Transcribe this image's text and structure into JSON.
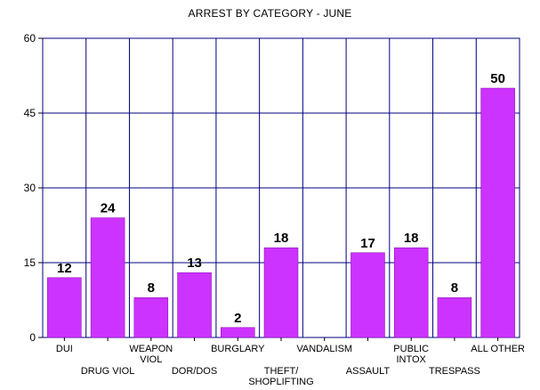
{
  "chart_data": {
    "type": "bar",
    "title": "ARREST BY CATEGORY - JUNE",
    "xlabel": "",
    "ylabel": "",
    "ylim": [
      0,
      60
    ],
    "yticks": [
      0,
      15,
      30,
      45,
      60
    ],
    "grid": true,
    "legend": "none",
    "bar_color": "#cc33ff",
    "grid_color": "#000080",
    "categories": [
      {
        "lines": [
          "DUI"
        ],
        "row": 0
      },
      {
        "lines": [
          "DRUG VIOL"
        ],
        "row": 1
      },
      {
        "lines": [
          "WEAPON",
          "VIOL"
        ],
        "row": 0
      },
      {
        "lines": [
          "DOR/DOS"
        ],
        "row": 1
      },
      {
        "lines": [
          "BURGLARY"
        ],
        "row": 0
      },
      {
        "lines": [
          "THEFT/",
          "SHOPLIFTING"
        ],
        "row": 1
      },
      {
        "lines": [
          "VANDALISM"
        ],
        "row": 0
      },
      {
        "lines": [
          "ASSAULT"
        ],
        "row": 1
      },
      {
        "lines": [
          "PUBLIC",
          "INTOX"
        ],
        "row": 0
      },
      {
        "lines": [
          "TRESPASS"
        ],
        "row": 1
      },
      {
        "lines": [
          "ALL OTHER"
        ],
        "row": 0
      }
    ],
    "values": [
      12,
      24,
      8,
      13,
      2,
      18,
      null,
      17,
      18,
      8,
      50
    ]
  }
}
